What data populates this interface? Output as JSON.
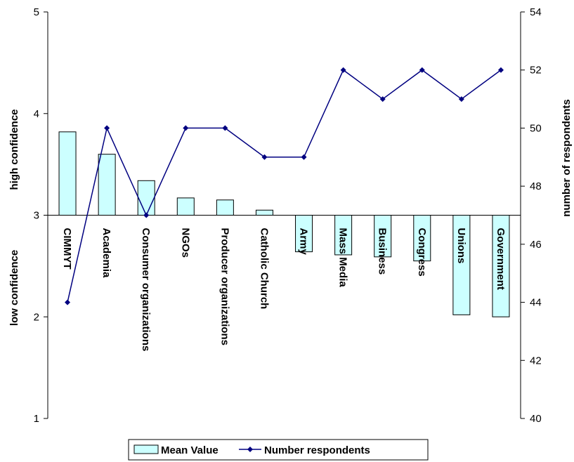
{
  "chart_data": {
    "type": "bar",
    "categories": [
      "CIMMYT",
      "Academia",
      "Consumer organizations",
      "NGOs",
      "Producer organizations",
      "Catholic Church",
      "Army",
      "Mass Media",
      "Business",
      "Congress",
      "Unions",
      "Government"
    ],
    "series": [
      {
        "name": "Mean Value",
        "type": "bar",
        "axis": "left",
        "color": "#ccffff",
        "values": [
          3.82,
          3.6,
          3.34,
          3.17,
          3.15,
          3.05,
          2.64,
          2.61,
          2.59,
          2.55,
          2.02,
          2.0
        ]
      },
      {
        "name": "Number respondents",
        "type": "line",
        "axis": "right",
        "color": "#000080",
        "values": [
          44,
          50,
          47,
          50,
          50,
          49,
          49,
          52,
          51,
          52,
          51,
          52
        ]
      }
    ],
    "left_axis": {
      "range": [
        1,
        5
      ],
      "baseline": 3,
      "ticks": [
        "1",
        "2",
        "3",
        "4",
        "5"
      ],
      "label_upper": "high confidence",
      "label_lower": "low confidence"
    },
    "right_axis": {
      "range": [
        40,
        54
      ],
      "ticks": [
        "40",
        "42",
        "44",
        "46",
        "48",
        "50",
        "52",
        "54"
      ],
      "label": "number of respondents"
    },
    "legend": {
      "position": "bottom-center",
      "items": [
        "Mean Value",
        "Number respondents"
      ]
    },
    "grid": false
  }
}
